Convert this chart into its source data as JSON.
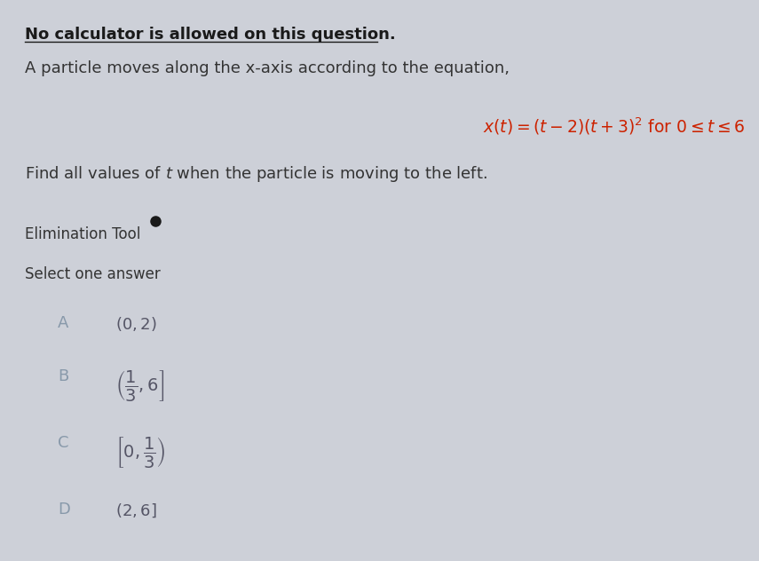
{
  "background_color": "#cdd0d8",
  "font_color": "#333333",
  "option_label_color": "#8899aa",
  "equation_color": "#cc2200",
  "title_bold": "No calculator is allowed on this question.",
  "line2": "A particle moves along the x-axis according to the equation,",
  "question": "Find all values of $t$ when the particle is moving to the left.",
  "elim_label": "Elimination Tool",
  "select_label": "Select one answer",
  "eq_latex": "$x(t) = (t-2)(t+3)^2\\ \\mathrm{for}\\ 0 \\leq t \\leq 6$",
  "opt_A_label": "A",
  "opt_A_text": "$(0, 2)$",
  "opt_B_label": "B",
  "opt_B_text": "$\\left(\\dfrac{1}{3}, 6\\right]$",
  "opt_C_label": "C",
  "opt_C_text": "$\\left[0, \\dfrac{1}{3}\\right)$",
  "opt_D_label": "D",
  "opt_D_text": "$(2, 6]$",
  "fig_width": 8.55,
  "fig_height": 6.32,
  "dpi": 100
}
